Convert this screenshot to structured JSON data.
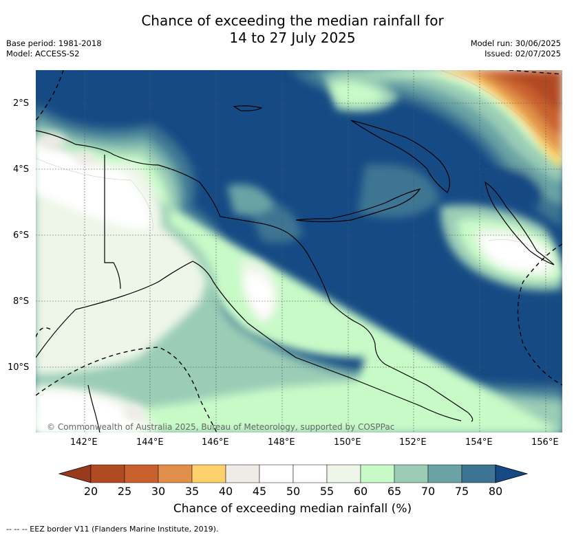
{
  "title": {
    "line1": "Chance of exceeding the median rainfall for",
    "line2": "14 to 27 July 2025"
  },
  "meta_left": {
    "base_period": "Base period: 1981-2018",
    "model": "Model: ACCESS-S2"
  },
  "meta_right": {
    "model_run": "Model run: 30/06/2025",
    "issued": "Issued: 02/07/2025"
  },
  "map": {
    "lat_labels": [
      "2°S",
      "4°S",
      "6°S",
      "8°S",
      "10°S"
    ],
    "lon_labels": [
      "142°E",
      "144°E",
      "146°E",
      "148°E",
      "150°E",
      "152°E",
      "154°E",
      "156°E"
    ],
    "copyright": "© Commonwealth of Australia 2025, Bureau of Meteorology, supported by COSPPac"
  },
  "colorbar": {
    "ticks": [
      "20",
      "25",
      "30",
      "35",
      "40",
      "45",
      "50",
      "55",
      "60",
      "65",
      "70",
      "75",
      "80"
    ],
    "colors": [
      "#b04a22",
      "#c9612e",
      "#e0904a",
      "#fcd06a",
      "#efebe6",
      "#ffffff",
      "#ffffff",
      "#edf6e8",
      "#c8fac8",
      "#9bcdb6",
      "#6ba3a5",
      "#3d7493"
    ],
    "under_color": "#9a3a1c",
    "over_color": "#154a84",
    "title": "Chance of exceeding median rainfall (%)"
  },
  "footer": {
    "eez_note": "--  --  -- EEZ border V11 (Flanders Marine Institute, 2019)."
  }
}
